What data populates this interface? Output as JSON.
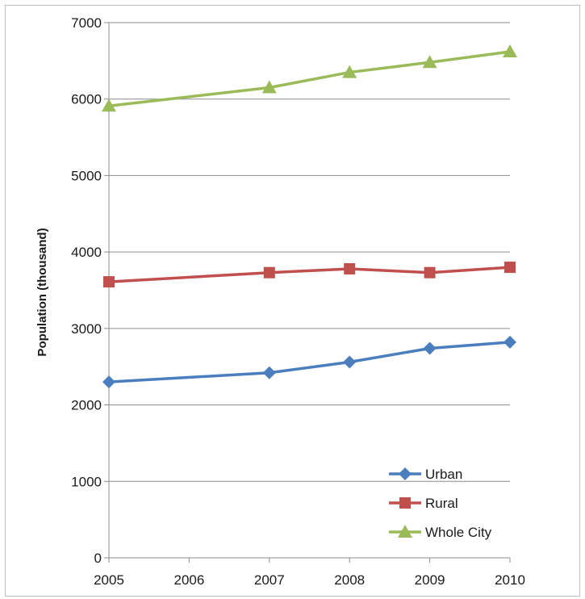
{
  "chart_data": {
    "type": "line",
    "title": "",
    "xlabel": "",
    "ylabel": "Population (thousand)",
    "categories": [
      "2005",
      "2006",
      "2007",
      "2008",
      "2009",
      "2010"
    ],
    "ylim": [
      0,
      7000
    ],
    "yticks": [
      0,
      1000,
      2000,
      3000,
      4000,
      5000,
      6000,
      7000
    ],
    "grid": "horizontal",
    "legend_position": "bottom-right",
    "series": [
      {
        "name": "Urban",
        "color": "#4a7ebf",
        "marker": "diamond",
        "points": [
          [
            "2005",
            2300
          ],
          [
            "2007",
            2420
          ],
          [
            "2008",
            2560
          ],
          [
            "2009",
            2740
          ],
          [
            "2010",
            2820
          ]
        ]
      },
      {
        "name": "Rural",
        "color": "#c0504d",
        "marker": "square",
        "points": [
          [
            "2005",
            3610
          ],
          [
            "2007",
            3730
          ],
          [
            "2008",
            3780
          ],
          [
            "2009",
            3730
          ],
          [
            "2010",
            3800
          ]
        ]
      },
      {
        "name": "Whole City",
        "color": "#9bbb59",
        "marker": "triangle",
        "points": [
          [
            "2005",
            5910
          ],
          [
            "2007",
            6150
          ],
          [
            "2008",
            6350
          ],
          [
            "2009",
            6480
          ],
          [
            "2010",
            6620
          ]
        ]
      }
    ]
  }
}
